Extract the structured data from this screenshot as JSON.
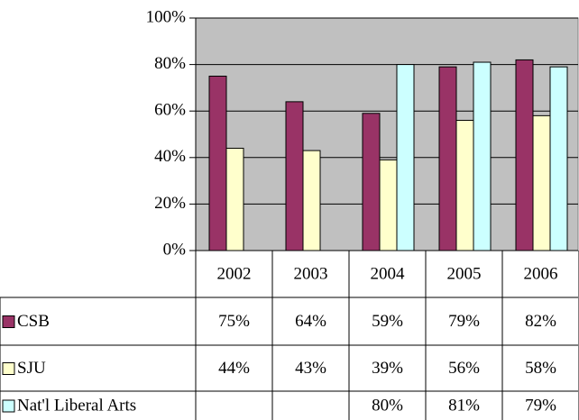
{
  "chart_data": {
    "type": "bar",
    "categories": [
      "2002",
      "2003",
      "2004",
      "2005",
      "2006"
    ],
    "series": [
      {
        "name": "CSB",
        "color": "#993366",
        "values": [
          75,
          64,
          59,
          79,
          82
        ],
        "value_labels": [
          "75%",
          "64%",
          "59%",
          "79%",
          "82%"
        ]
      },
      {
        "name": "SJU",
        "color": "#ffffcc",
        "values": [
          44,
          43,
          39,
          56,
          58
        ],
        "value_labels": [
          "44%",
          "43%",
          "39%",
          "56%",
          "58%"
        ]
      },
      {
        "name": "Nat'l Liberal Arts",
        "color": "#ccffff",
        "values": [
          null,
          null,
          80,
          81,
          79
        ],
        "value_labels": [
          null,
          null,
          "80%",
          "81%",
          "79%"
        ]
      }
    ],
    "ylim": [
      0,
      100
    ],
    "yticks": [
      {
        "value": 0,
        "label": "0%"
      },
      {
        "value": 20,
        "label": "20%"
      },
      {
        "value": 40,
        "label": "40%"
      },
      {
        "value": 60,
        "label": "60%"
      },
      {
        "value": 80,
        "label": "80%"
      },
      {
        "value": 100,
        "label": "100%"
      }
    ],
    "grid": true,
    "plot_background": "#c0c0c0"
  }
}
